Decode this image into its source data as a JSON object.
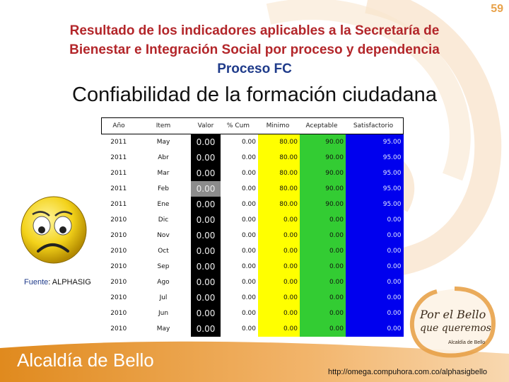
{
  "page_number": "59",
  "title_lines": [
    "Resultado de los indicadores aplicables a la Secretaría de",
    "Bienestar e Integración Social por proceso y dependencia"
  ],
  "process_title": "Proceso FC",
  "subtitle": "Confiabilidad de la formación ciudadana",
  "table": {
    "headers": [
      "Año",
      "Item",
      "Valor",
      "% Cum",
      "Minimo",
      "Aceptable",
      "Satisfactorio"
    ],
    "rows": [
      [
        "2011",
        "May",
        "0.00",
        "0.00",
        "80.00",
        "90.00",
        "95.00"
      ],
      [
        "2011",
        "Abr",
        "0.00",
        "0.00",
        "80.00",
        "90.00",
        "95.00"
      ],
      [
        "2011",
        "Mar",
        "0.00",
        "0.00",
        "80.00",
        "90.00",
        "95.00"
      ],
      [
        "2011",
        "Feb",
        "0.00",
        "0.00",
        "80.00",
        "90.00",
        "95.00"
      ],
      [
        "2011",
        "Ene",
        "0.00",
        "0.00",
        "80.00",
        "90.00",
        "95.00"
      ],
      [
        "2010",
        "Dic",
        "0.00",
        "0.00",
        "0.00",
        "0.00",
        "0.00"
      ],
      [
        "2010",
        "Nov",
        "0.00",
        "0.00",
        "0.00",
        "0.00",
        "0.00"
      ],
      [
        "2010",
        "Oct",
        "0.00",
        "0.00",
        "0.00",
        "0.00",
        "0.00"
      ],
      [
        "2010",
        "Sep",
        "0.00",
        "0.00",
        "0.00",
        "0.00",
        "0.00"
      ],
      [
        "2010",
        "Ago",
        "0.00",
        "0.00",
        "0.00",
        "0.00",
        "0.00"
      ],
      [
        "2010",
        "Jul",
        "0.00",
        "0.00",
        "0.00",
        "0.00",
        "0.00"
      ],
      [
        "2010",
        "Jun",
        "0.00",
        "0.00",
        "0.00",
        "0.00",
        "0.00"
      ],
      [
        "2010",
        "May",
        "0.00",
        "0.00",
        "0.00",
        "0.00",
        "0.00"
      ]
    ],
    "highlighted_row": 3
  },
  "colors": {
    "valor": "#000000",
    "valor_highlight": "#8c8c8c",
    "minimo": "#ffff00",
    "aceptable": "#33cc33",
    "satisfactorio": "#0000ee"
  },
  "face_icon": "sad-face-icon",
  "source_label": "Fuente",
  "source_value": ": ALPHASIG",
  "footer_text": "Alcaldía de Bello",
  "logo": {
    "line1": "Por el Bello",
    "line2": "que queremos",
    "caption": "Alcaldía de Bello"
  },
  "url": "http://omega.compuhora.com.co/alphasigbello"
}
